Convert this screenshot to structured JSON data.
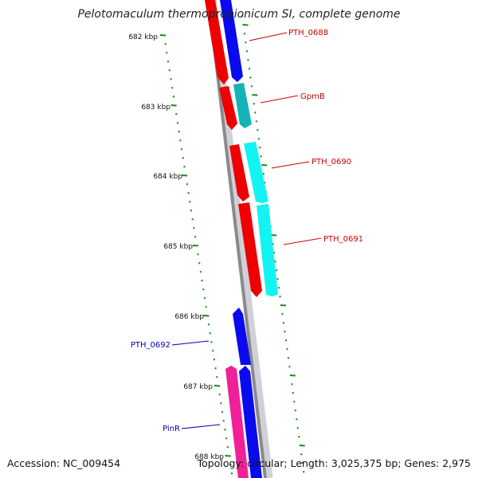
{
  "title": "Pelotomaculum thermopropionicum SI, complete genome",
  "accession": "Accession: NC_009454",
  "topology": "Topology: circular; Length: 3,025,375 bp; Genes: 2,975",
  "colors": {
    "backbone": "#888888",
    "scale_ticks": "#1a8a1a",
    "label_red": "#cc0000",
    "label_blue": "#0000bb"
  },
  "scale": {
    "unit": "kbp",
    "ticks": [
      "682 kbp",
      "683 kbp",
      "684 kbp",
      "685 kbp",
      "686 kbp",
      "687 kbp",
      "688 kbp"
    ]
  },
  "genes": [
    {
      "name": "PTH_0688",
      "strand": "forward",
      "color": "#0a0aee",
      "label_color": "#cc0000"
    },
    {
      "name": "GpmB",
      "strand": "forward",
      "color": "#13b3b8",
      "label_color": "#cc0000"
    },
    {
      "name": "PTH_0690",
      "strand": "forward",
      "color": "#14f3f3",
      "label_color": "#cc0000"
    },
    {
      "name": "PTH_0691",
      "strand": "forward",
      "color": "#14f3f3",
      "label_color": "#cc0000"
    },
    {
      "name": "PTH_0692",
      "strand": "reverse",
      "color": "#0a0aee",
      "label_color": "#0000bb"
    },
    {
      "name": "PinR",
      "strand": "reverse",
      "color": "#f0209a",
      "label_color": "#0000bb"
    }
  ],
  "cds_color": "#ee0000"
}
